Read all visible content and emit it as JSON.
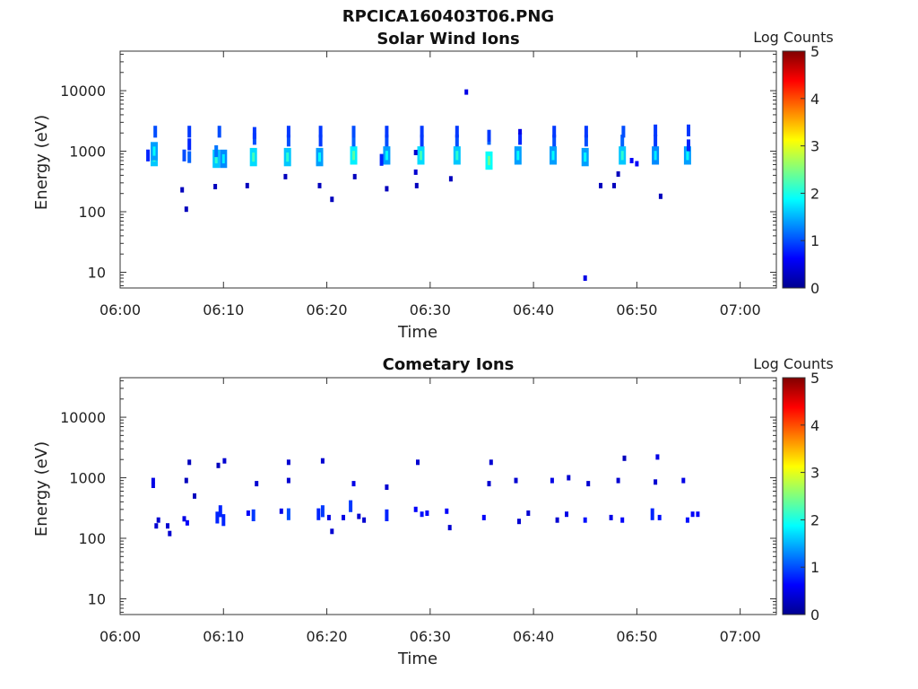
{
  "figure": {
    "title": "RPCICA160403T06.PNG"
  },
  "chart_data": [
    {
      "type": "heatmap",
      "title": "Solar Wind Ions",
      "xlabel": "Time",
      "ylabel": "Energy (eV)",
      "x_ticks": [
        "06:00",
        "06:10",
        "06:20",
        "06:30",
        "06:40",
        "06:50",
        "07:00"
      ],
      "y_ticks": [
        "10",
        "100",
        "1000",
        "10000"
      ],
      "y_scale": "log",
      "ylim": [
        5.5,
        45000
      ],
      "xlim_minutes": [
        0,
        63.5
      ],
      "colorbar": {
        "label": "Log Counts",
        "ticks": [
          "0",
          "1",
          "2",
          "3",
          "4",
          "5"
        ],
        "range": [
          0,
          5
        ],
        "colormap": "jet"
      },
      "cells": [
        {
          "t": 3.3,
          "e": 800,
          "v": 1.6
        },
        {
          "t": 3.3,
          "e": 1000,
          "v": 1.4
        },
        {
          "t": 3.4,
          "e": 2100,
          "v": 1.0
        },
        {
          "t": 2.7,
          "e": 850,
          "v": 0.8
        },
        {
          "t": 6.2,
          "e": 850,
          "v": 1.0
        },
        {
          "t": 6.7,
          "e": 800,
          "v": 1.1
        },
        {
          "t": 6.7,
          "e": 1300,
          "v": 0.8
        },
        {
          "t": 6.7,
          "e": 2100,
          "v": 0.9
        },
        {
          "t": 6.0,
          "e": 230,
          "v": 0.3
        },
        {
          "t": 6.4,
          "e": 110,
          "v": 0.3
        },
        {
          "t": 9.3,
          "e": 750,
          "v": 1.6
        },
        {
          "t": 9.3,
          "e": 1000,
          "v": 1.2
        },
        {
          "t": 10.0,
          "e": 750,
          "v": 1.3
        },
        {
          "t": 9.6,
          "e": 2100,
          "v": 1.0
        },
        {
          "t": 9.2,
          "e": 260,
          "v": 0.3
        },
        {
          "t": 12.9,
          "e": 800,
          "v": 1.7
        },
        {
          "t": 13.0,
          "e": 1600,
          "v": 1.0
        },
        {
          "t": 13.0,
          "e": 2000,
          "v": 0.9
        },
        {
          "t": 12.3,
          "e": 270,
          "v": 0.3
        },
        {
          "t": 16.2,
          "e": 800,
          "v": 1.6
        },
        {
          "t": 16.3,
          "e": 1500,
          "v": 1.0
        },
        {
          "t": 16.3,
          "e": 2100,
          "v": 0.9
        },
        {
          "t": 16.0,
          "e": 380,
          "v": 0.3
        },
        {
          "t": 19.3,
          "e": 800,
          "v": 1.4
        },
        {
          "t": 19.4,
          "e": 1500,
          "v": 0.9
        },
        {
          "t": 19.4,
          "e": 2100,
          "v": 0.9
        },
        {
          "t": 19.3,
          "e": 270,
          "v": 0.3
        },
        {
          "t": 20.5,
          "e": 160,
          "v": 0.3
        },
        {
          "t": 22.6,
          "e": 850,
          "v": 1.8
        },
        {
          "t": 22.6,
          "e": 1500,
          "v": 1.1
        },
        {
          "t": 22.6,
          "e": 2100,
          "v": 1.0
        },
        {
          "t": 22.7,
          "e": 380,
          "v": 0.3
        },
        {
          "t": 25.8,
          "e": 850,
          "v": 1.4
        },
        {
          "t": 25.8,
          "e": 1500,
          "v": 1.0
        },
        {
          "t": 25.8,
          "e": 2100,
          "v": 0.9
        },
        {
          "t": 25.3,
          "e": 720,
          "v": 0.8
        },
        {
          "t": 25.8,
          "e": 240,
          "v": 0.3
        },
        {
          "t": 29.1,
          "e": 850,
          "v": 1.7
        },
        {
          "t": 29.2,
          "e": 1500,
          "v": 0.9
        },
        {
          "t": 29.2,
          "e": 2100,
          "v": 0.9
        },
        {
          "t": 28.6,
          "e": 450,
          "v": 0.4
        },
        {
          "t": 28.6,
          "e": 950,
          "v": 0.4
        },
        {
          "t": 28.7,
          "e": 270,
          "v": 0.3
        },
        {
          "t": 32.6,
          "e": 850,
          "v": 1.6
        },
        {
          "t": 32.6,
          "e": 1500,
          "v": 1.0
        },
        {
          "t": 32.6,
          "e": 2100,
          "v": 0.9
        },
        {
          "t": 32.0,
          "e": 350,
          "v": 0.3
        },
        {
          "t": 33.5,
          "e": 9500,
          "v": 0.5
        },
        {
          "t": 35.7,
          "e": 700,
          "v": 1.9
        },
        {
          "t": 35.7,
          "e": 1600,
          "v": 1.1
        },
        {
          "t": 35.7,
          "e": 1800,
          "v": 0.9
        },
        {
          "t": 38.5,
          "e": 850,
          "v": 1.4
        },
        {
          "t": 38.7,
          "e": 1600,
          "v": 0.8
        },
        {
          "t": 38.7,
          "e": 2100,
          "v": 0.5
        },
        {
          "t": 41.9,
          "e": 850,
          "v": 1.4
        },
        {
          "t": 42.0,
          "e": 1500,
          "v": 1.0
        },
        {
          "t": 42.0,
          "e": 2100,
          "v": 0.9
        },
        {
          "t": 45.0,
          "e": 800,
          "v": 1.4
        },
        {
          "t": 45.1,
          "e": 1500,
          "v": 1.0
        },
        {
          "t": 45.1,
          "e": 2100,
          "v": 0.9
        },
        {
          "t": 45.0,
          "e": 8,
          "v": 0.5
        },
        {
          "t": 46.5,
          "e": 270,
          "v": 0.3
        },
        {
          "t": 48.6,
          "e": 850,
          "v": 1.6
        },
        {
          "t": 48.6,
          "e": 1500,
          "v": 1.1
        },
        {
          "t": 48.7,
          "e": 2100,
          "v": 1.0
        },
        {
          "t": 48.2,
          "e": 420,
          "v": 0.3
        },
        {
          "t": 47.8,
          "e": 270,
          "v": 0.3
        },
        {
          "t": 49.5,
          "e": 700,
          "v": 0.6
        },
        {
          "t": 50.0,
          "e": 620,
          "v": 0.6
        },
        {
          "t": 51.8,
          "e": 850,
          "v": 1.3
        },
        {
          "t": 51.8,
          "e": 1500,
          "v": 0.9
        },
        {
          "t": 51.8,
          "e": 2200,
          "v": 0.9
        },
        {
          "t": 52.3,
          "e": 180,
          "v": 0.3
        },
        {
          "t": 54.9,
          "e": 850,
          "v": 1.4
        },
        {
          "t": 55.0,
          "e": 1250,
          "v": 0.8
        },
        {
          "t": 55.0,
          "e": 2200,
          "v": 0.9
        }
      ]
    },
    {
      "type": "heatmap",
      "title": "Cometary Ions",
      "xlabel": "Time",
      "ylabel": "Energy (eV)",
      "x_ticks": [
        "06:00",
        "06:10",
        "06:20",
        "06:30",
        "06:40",
        "06:50",
        "07:00"
      ],
      "y_ticks": [
        "10",
        "100",
        "1000",
        "10000"
      ],
      "y_scale": "log",
      "ylim": [
        5.5,
        45000
      ],
      "xlim_minutes": [
        0,
        63.5
      ],
      "colorbar": {
        "label": "Log Counts",
        "ticks": [
          "0",
          "1",
          "2",
          "3",
          "4",
          "5"
        ],
        "range": [
          0,
          5
        ],
        "colormap": "jet"
      },
      "cells": [
        {
          "t": 3.2,
          "e": 900,
          "v": 0.5
        },
        {
          "t": 3.2,
          "e": 750,
          "v": 0.5
        },
        {
          "t": 3.7,
          "e": 200,
          "v": 0.4
        },
        {
          "t": 3.5,
          "e": 160,
          "v": 0.4
        },
        {
          "t": 4.6,
          "e": 160,
          "v": 0.4
        },
        {
          "t": 4.8,
          "e": 120,
          "v": 0.4
        },
        {
          "t": 6.2,
          "e": 210,
          "v": 0.5
        },
        {
          "t": 6.5,
          "e": 180,
          "v": 0.6
        },
        {
          "t": 6.4,
          "e": 900,
          "v": 0.3
        },
        {
          "t": 6.7,
          "e": 1800,
          "v": 0.3
        },
        {
          "t": 7.2,
          "e": 500,
          "v": 0.3
        },
        {
          "t": 9.4,
          "e": 220,
          "v": 0.8
        },
        {
          "t": 9.7,
          "e": 280,
          "v": 0.8
        },
        {
          "t": 10.0,
          "e": 200,
          "v": 0.8
        },
        {
          "t": 9.5,
          "e": 1600,
          "v": 0.3
        },
        {
          "t": 10.1,
          "e": 1900,
          "v": 0.4
        },
        {
          "t": 12.4,
          "e": 260,
          "v": 0.6
        },
        {
          "t": 12.9,
          "e": 240,
          "v": 0.9
        },
        {
          "t": 13.2,
          "e": 800,
          "v": 0.4
        },
        {
          "t": 15.6,
          "e": 280,
          "v": 0.5
        },
        {
          "t": 16.3,
          "e": 250,
          "v": 1.0
        },
        {
          "t": 16.3,
          "e": 900,
          "v": 0.4
        },
        {
          "t": 16.3,
          "e": 1800,
          "v": 0.4
        },
        {
          "t": 19.2,
          "e": 250,
          "v": 0.8
        },
        {
          "t": 19.6,
          "e": 280,
          "v": 0.9
        },
        {
          "t": 20.2,
          "e": 220,
          "v": 0.5
        },
        {
          "t": 19.6,
          "e": 1900,
          "v": 0.4
        },
        {
          "t": 20.5,
          "e": 130,
          "v": 0.4
        },
        {
          "t": 21.6,
          "e": 220,
          "v": 0.5
        },
        {
          "t": 22.3,
          "e": 340,
          "v": 0.9
        },
        {
          "t": 22.6,
          "e": 800,
          "v": 0.5
        },
        {
          "t": 23.1,
          "e": 230,
          "v": 0.4
        },
        {
          "t": 23.6,
          "e": 200,
          "v": 0.4
        },
        {
          "t": 25.8,
          "e": 240,
          "v": 0.8
        },
        {
          "t": 25.8,
          "e": 700,
          "v": 0.4
        },
        {
          "t": 28.6,
          "e": 300,
          "v": 0.6
        },
        {
          "t": 29.2,
          "e": 250,
          "v": 0.7
        },
        {
          "t": 29.7,
          "e": 260,
          "v": 0.6
        },
        {
          "t": 28.8,
          "e": 1800,
          "v": 0.4
        },
        {
          "t": 31.6,
          "e": 280,
          "v": 0.6
        },
        {
          "t": 31.9,
          "e": 150,
          "v": 0.4
        },
        {
          "t": 35.2,
          "e": 220,
          "v": 0.6
        },
        {
          "t": 35.7,
          "e": 800,
          "v": 0.4
        },
        {
          "t": 35.9,
          "e": 1800,
          "v": 0.4
        },
        {
          "t": 38.3,
          "e": 900,
          "v": 0.4
        },
        {
          "t": 38.6,
          "e": 190,
          "v": 0.4
        },
        {
          "t": 39.5,
          "e": 260,
          "v": 0.4
        },
        {
          "t": 41.8,
          "e": 900,
          "v": 0.5
        },
        {
          "t": 42.3,
          "e": 200,
          "v": 0.4
        },
        {
          "t": 43.2,
          "e": 250,
          "v": 0.5
        },
        {
          "t": 43.4,
          "e": 1000,
          "v": 0.4
        },
        {
          "t": 45.0,
          "e": 200,
          "v": 0.7
        },
        {
          "t": 45.3,
          "e": 800,
          "v": 0.4
        },
        {
          "t": 47.5,
          "e": 220,
          "v": 0.5
        },
        {
          "t": 48.2,
          "e": 900,
          "v": 0.4
        },
        {
          "t": 48.6,
          "e": 200,
          "v": 0.6
        },
        {
          "t": 48.8,
          "e": 2100,
          "v": 0.3
        },
        {
          "t": 51.5,
          "e": 250,
          "v": 0.8
        },
        {
          "t": 51.8,
          "e": 850,
          "v": 0.4
        },
        {
          "t": 52.0,
          "e": 2200,
          "v": 0.5
        },
        {
          "t": 52.2,
          "e": 220,
          "v": 0.7
        },
        {
          "t": 54.5,
          "e": 900,
          "v": 0.5
        },
        {
          "t": 54.9,
          "e": 200,
          "v": 0.7
        },
        {
          "t": 55.4,
          "e": 250,
          "v": 0.6
        },
        {
          "t": 55.9,
          "e": 250,
          "v": 0.6
        }
      ]
    }
  ]
}
